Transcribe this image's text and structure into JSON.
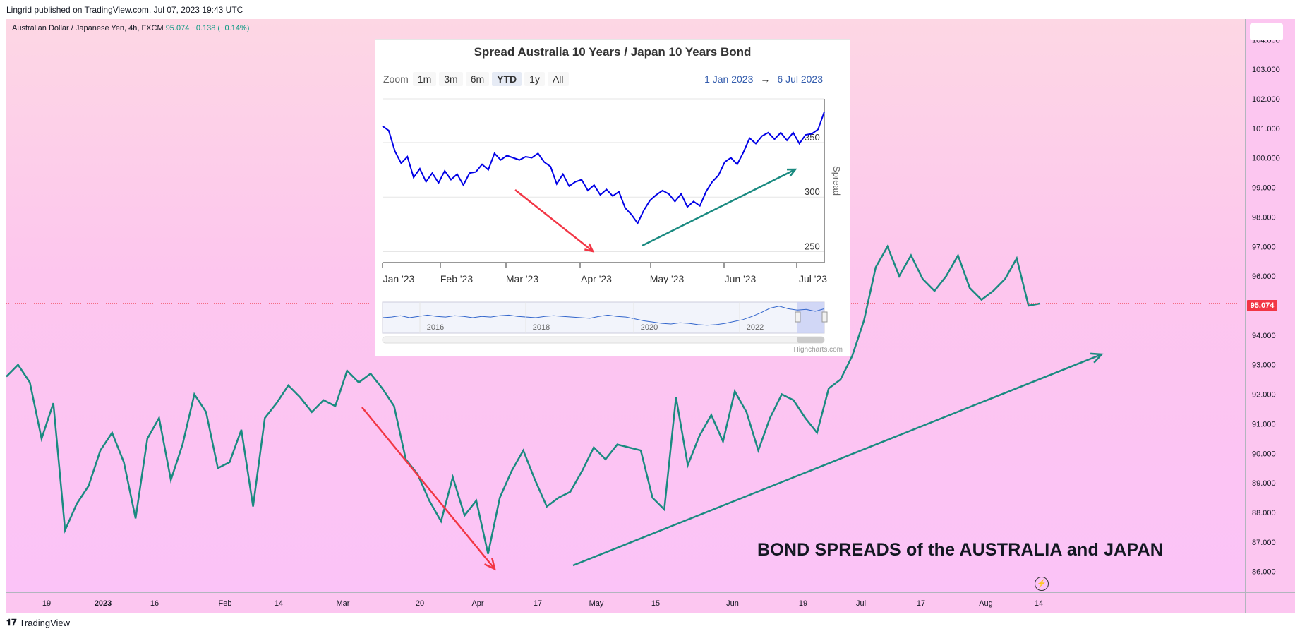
{
  "header": {
    "credit": "Lingrid published on TradingView.com, Jul 07, 2023 19:43 UTC"
  },
  "symbol": {
    "name": "Australian Dollar / Japanese Yen, 4h, FXCM",
    "price": "95.074",
    "change": "−0.138 (−0.14%)"
  },
  "price_tag": "95.074",
  "annotation": "BOND SPREADS of the AUSTRALIA and JAPAN",
  "footer": {
    "brand": "TradingView"
  },
  "colors": {
    "main_line": "#1a8a80",
    "down_arrow": "#f23645",
    "up_arrow": "#1a8a80",
    "inset_line": "#0000e6",
    "price_tag": "#f23645"
  },
  "icons": {
    "lightning": "lightning-icon",
    "logo": "tradingview-logo-icon"
  },
  "inset": {
    "title": "Spread Australia 10 Years / Japan 10 Years Bond",
    "zoom_label": "Zoom",
    "zoom_buttons": [
      "1m",
      "3m",
      "6m",
      "YTD",
      "1y",
      "All"
    ],
    "zoom_active": "YTD",
    "range_from": "1 Jan 2023",
    "range_arrow": "→",
    "range_to": "6 Jul 2023",
    "credits": "Highcharts.com"
  },
  "chart_data": [
    {
      "type": "line",
      "title": "",
      "series": [
        {
          "values": [
            92.6,
            93.0,
            92.4,
            90.5,
            91.7,
            87.4,
            88.3,
            88.9,
            90.1,
            90.7,
            89.7,
            87.8,
            90.5,
            91.2,
            89.1,
            90.3,
            92.0,
            91.4,
            89.5,
            89.7,
            90.8,
            88.2,
            91.2,
            91.7,
            92.3,
            91.9,
            91.4,
            91.8,
            91.6,
            92.8,
            92.4,
            92.7,
            92.2,
            91.6,
            89.8,
            89.3,
            88.4,
            87.7,
            89.2,
            87.9,
            88.4,
            86.6,
            88.5,
            89.4,
            90.1,
            89.1,
            88.2,
            88.5,
            88.7,
            89.4,
            90.2,
            89.8,
            90.3,
            90.2,
            90.1,
            88.5,
            88.1,
            91.9,
            89.6,
            90.6,
            91.3,
            90.4,
            92.1,
            91.4,
            90.1,
            91.2,
            92.0,
            91.8,
            91.2,
            90.7,
            92.2,
            92.5,
            93.3,
            94.5,
            96.3,
            97.0,
            96.0,
            96.7,
            95.9,
            95.5,
            96.0,
            96.7,
            95.6,
            95.2,
            95.5,
            95.9,
            96.6,
            95.0,
            95.074
          ]
        }
      ],
      "y_axis": {
        "ticks": [
          "86.000",
          "87.000",
          "88.000",
          "89.000",
          "90.000",
          "91.000",
          "92.000",
          "93.000",
          "94.000",
          "95.000",
          "96.000",
          "97.000",
          "98.000",
          "99.000",
          "100.000",
          "101.000",
          "102.000",
          "103.000",
          "104.000"
        ],
        "range": [
          85.3,
          104.7
        ]
      },
      "x_axis": {
        "ticks": [
          "19",
          "2023",
          "16",
          "Feb",
          "14",
          "Mar",
          "20",
          "Apr",
          "17",
          "May",
          "15",
          "Jun",
          "19",
          "Jul",
          "17",
          "Aug",
          "14"
        ]
      }
    },
    {
      "type": "line",
      "title": "Spread Australia 10 Years / Japan 10 Years Bond",
      "ylabel": "Spread",
      "series": [
        {
          "values": [
            365,
            361,
            342,
            331,
            337,
            318,
            326,
            314,
            322,
            313,
            324,
            316,
            321,
            311,
            322,
            323,
            330,
            325,
            340,
            334,
            338,
            336,
            334,
            337,
            336,
            340,
            332,
            328,
            312,
            321,
            310,
            314,
            316,
            306,
            311,
            302,
            307,
            301,
            305,
            290,
            284,
            276,
            288,
            297,
            302,
            306,
            303,
            296,
            303,
            291,
            296,
            292,
            305,
            314,
            320,
            332,
            336,
            330,
            341,
            354,
            349,
            356,
            359,
            353,
            359,
            352,
            359,
            349,
            357,
            358,
            362,
            378
          ]
        }
      ],
      "y_axis": {
        "ticks": [
          "250",
          "300",
          "350"
        ],
        "range": [
          240,
          390
        ]
      },
      "x_axis": {
        "ticks": [
          "Jan '23",
          "Feb '23",
          "Mar '23",
          "Apr '23",
          "May '23",
          "Jun '23",
          "Jul '23"
        ]
      },
      "navigator": {
        "labels": [
          "2016",
          "2018",
          "2020",
          "2022"
        ]
      }
    }
  ]
}
